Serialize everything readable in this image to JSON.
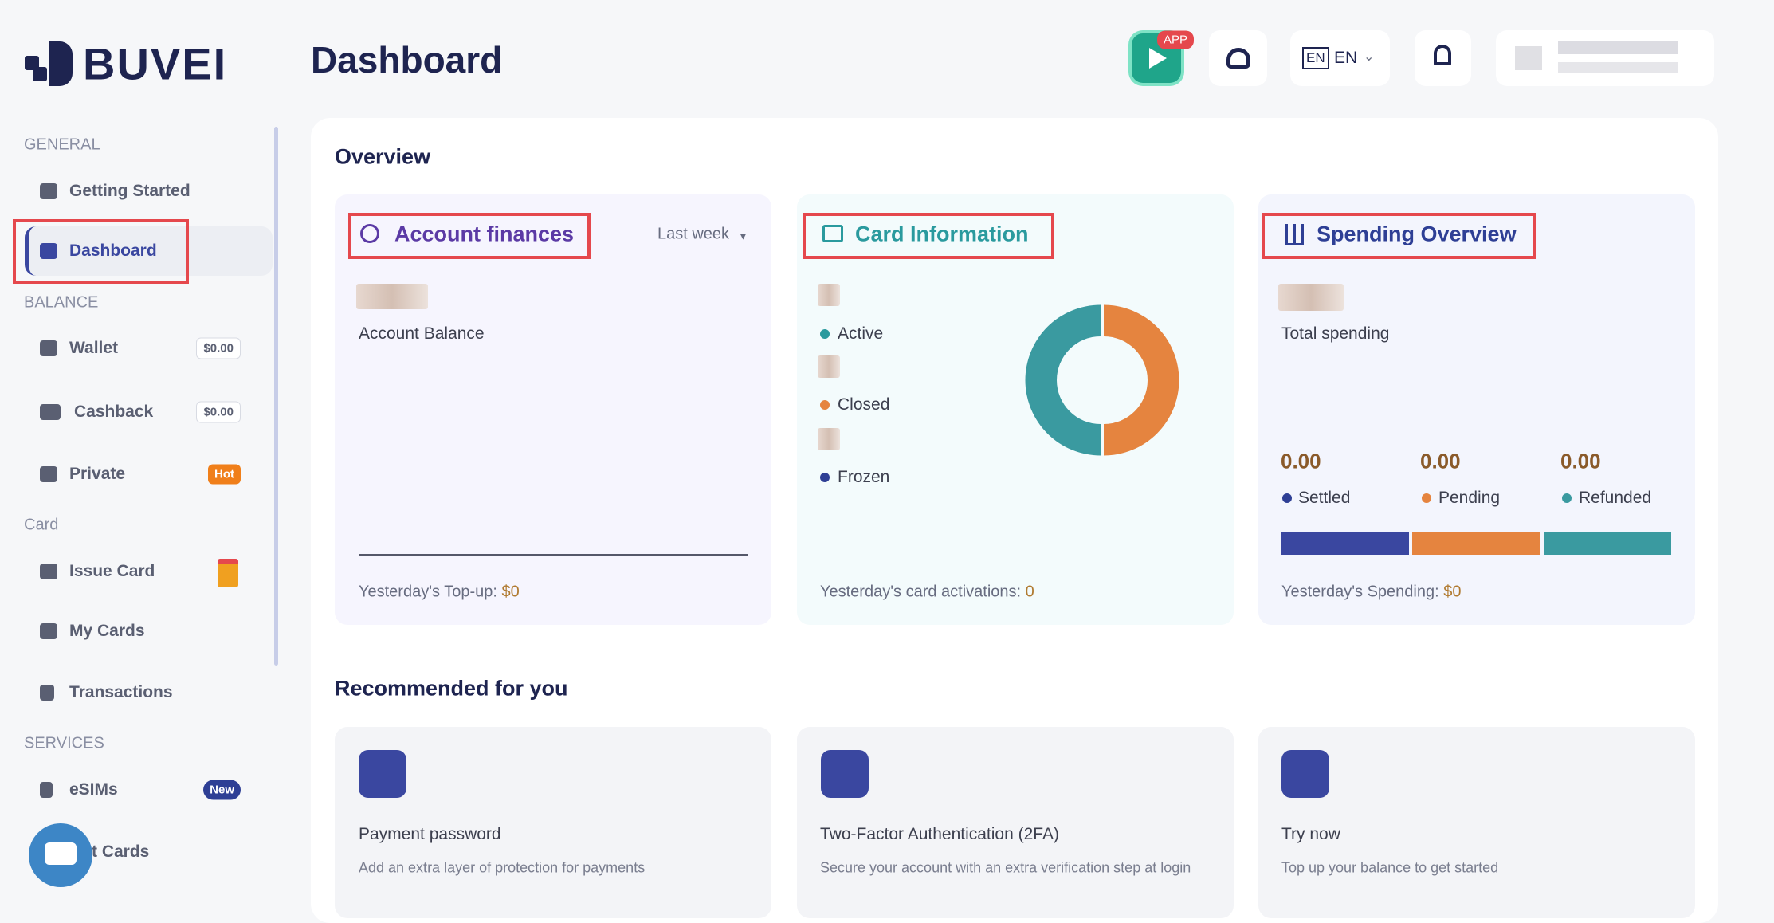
{
  "logo": "BUVEI",
  "header": {
    "title": "Dashboard",
    "app_badge": "APP",
    "language": "EN"
  },
  "sidebar": {
    "sections": [
      {
        "label": "GENERAL",
        "items": [
          {
            "label": "Getting Started"
          },
          {
            "label": "Dashboard"
          }
        ]
      },
      {
        "label": "BALANCE",
        "items": [
          {
            "label": "Wallet",
            "badge": "$0.00"
          },
          {
            "label": "Cashback",
            "badge": "$0.00"
          },
          {
            "label": "Private",
            "badge": "Hot"
          }
        ]
      },
      {
        "label": "Card",
        "items": [
          {
            "label": "Issue Card"
          },
          {
            "label": "My Cards"
          },
          {
            "label": "Transactions"
          }
        ]
      },
      {
        "label": "SERVICES",
        "items": [
          {
            "label": "eSIMs",
            "badge": "New"
          },
          {
            "label": "t Cards"
          }
        ]
      }
    ]
  },
  "overview": {
    "title": "Overview",
    "account_finances": {
      "title": "Account finances",
      "period": "Last week",
      "balance_label": "Account Balance",
      "topup_label": "Yesterday's Top-up:",
      "topup_value": "$0"
    },
    "card_information": {
      "title": "Card Information",
      "legend": [
        "Active",
        "Closed",
        "Frozen"
      ],
      "activations_label": "Yesterday's card activations:",
      "activations_value": "0"
    },
    "spending_overview": {
      "title": "Spending Overview",
      "total_label": "Total spending",
      "stats": [
        {
          "value": "0.00",
          "label": "Settled"
        },
        {
          "value": "0.00",
          "label": "Pending"
        },
        {
          "value": "0.00",
          "label": "Refunded"
        }
      ],
      "yesterday_label": "Yesterday's Spending:",
      "yesterday_value": "$0"
    }
  },
  "recommended": {
    "title": "Recommended for you",
    "items": [
      {
        "title": "Payment password",
        "description": "Add an extra layer of protection for payments"
      },
      {
        "title": "Two-Factor Authentication (2FA)",
        "description": "Secure your account with an extra verification step at login"
      },
      {
        "title": "Try now",
        "description": "Top up your balance to get started"
      }
    ]
  }
}
